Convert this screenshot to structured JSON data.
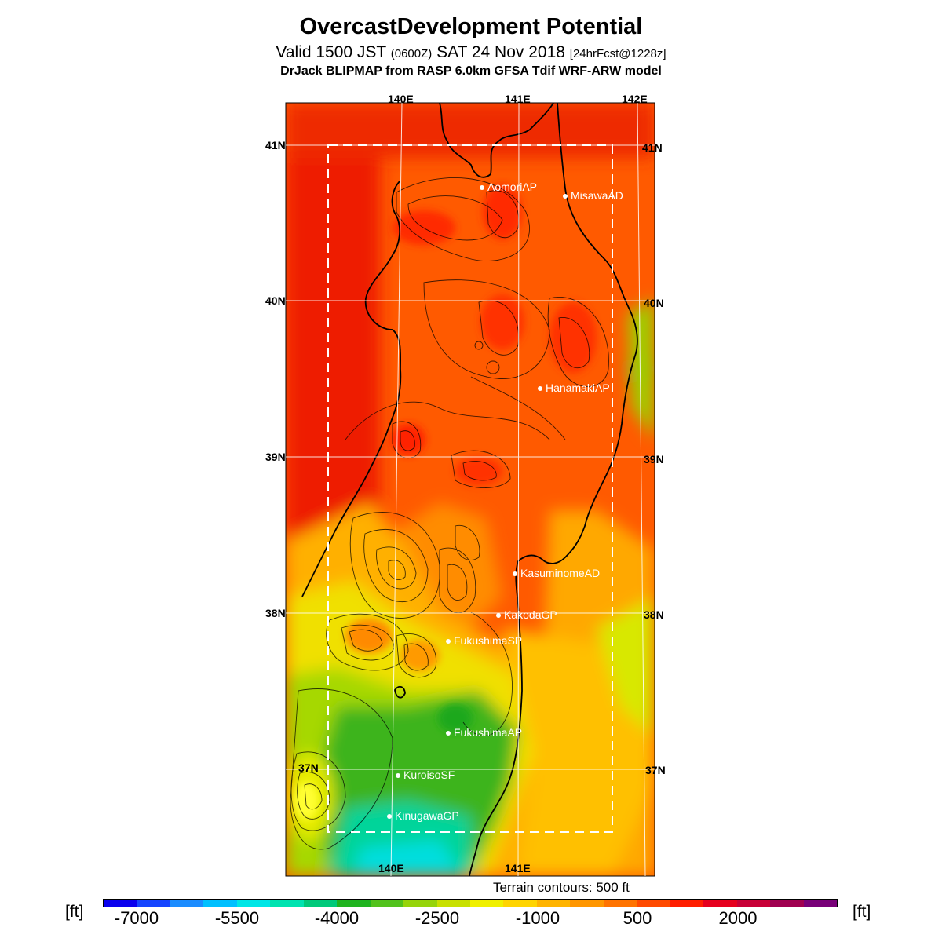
{
  "title": "OvercastDevelopment Potential",
  "subtitle": {
    "part1": "Valid 1500 JST",
    "zulu": "(0600Z)",
    "part2": "SAT 24 Nov 2018",
    "fcst": "[24hrFcst@1228z]"
  },
  "model_line": "DrJack BLIPMAP from RASP 6.0km GFSA Tdif WRF-ARW model",
  "axis_labels": {
    "lon_top": [
      "140E",
      "141E",
      "142E"
    ],
    "lon_bottom": [
      "140E",
      "141E"
    ],
    "lat_left": [
      "41N",
      "40N",
      "39N",
      "38N",
      "37N"
    ],
    "lat_right": [
      "41N",
      "40N",
      "39N",
      "38N",
      "37N"
    ]
  },
  "stations": [
    "AomoriAP",
    "MisawaAD",
    "HanamakiAP",
    "KasuminomeAD",
    "KakodaGP",
    "FukushimaSP",
    "FukushimaAP",
    "KuroisoSF",
    "KinugawaGP"
  ],
  "terrain_note": "Terrain contours: 500 ft",
  "colorbar": {
    "unit_left": "[ft]",
    "unit_right": "[ft]",
    "tick_labels": [
      "-7000",
      "-5500",
      "-4000",
      "-2500",
      "-1000",
      "500",
      "2000"
    ],
    "colors": [
      "#0a00ee",
      "#1544ff",
      "#1b8cff",
      "#00c0ff",
      "#00e6e6",
      "#00e3b0",
      "#00c97a",
      "#1fb41f",
      "#52c21c",
      "#96d40a",
      "#c8e000",
      "#f0f000",
      "#ffd400",
      "#ffb400",
      "#ff9600",
      "#ff7300",
      "#ff4a00",
      "#ff1e00",
      "#e6001e",
      "#c80037",
      "#a00050",
      "#780078"
    ]
  }
}
